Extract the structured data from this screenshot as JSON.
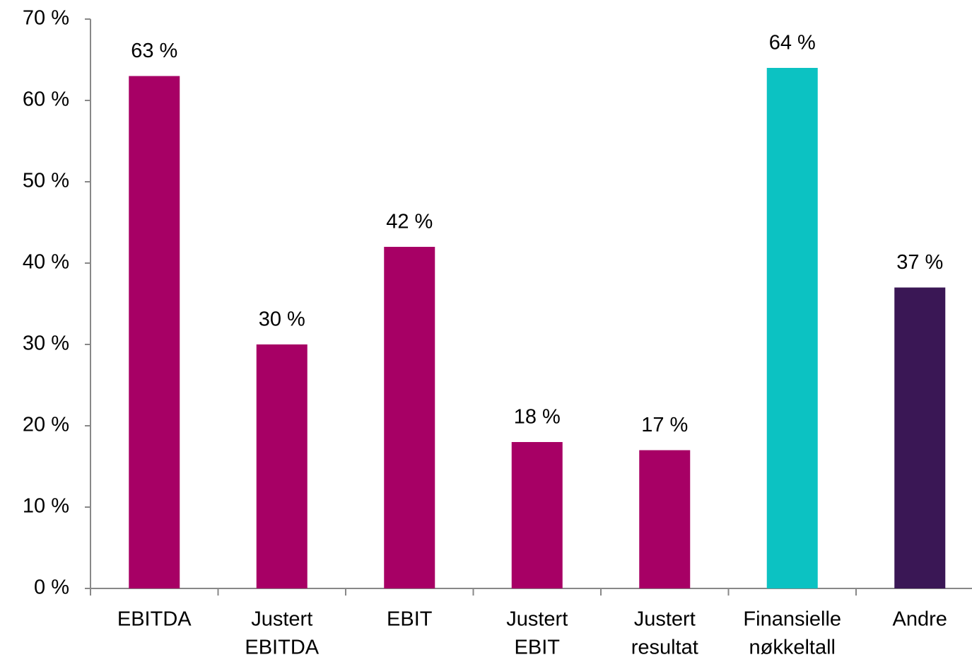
{
  "chart_data": {
    "type": "bar",
    "categories": [
      [
        "EBITDA"
      ],
      [
        "Justert",
        "EBITDA"
      ],
      [
        "EBIT"
      ],
      [
        "Justert",
        "EBIT"
      ],
      [
        "Justert",
        "resultat"
      ],
      [
        "Finansielle",
        "nøkkeltall"
      ],
      [
        "Andre"
      ]
    ],
    "values": [
      63,
      30,
      42,
      18,
      17,
      64,
      37
    ],
    "value_labels": [
      "63 %",
      "30 %",
      "42 %",
      "18 %",
      "17 %",
      "64 %",
      "37 %"
    ],
    "colors": [
      "#a70065",
      "#a70065",
      "#a70065",
      "#a70065",
      "#a70065",
      "#0cc2c2",
      "#3a1755"
    ],
    "ylim": [
      0,
      70
    ],
    "yticks": [
      {
        "value": 0,
        "label": "0 %"
      },
      {
        "value": 10,
        "label": "10 %"
      },
      {
        "value": 20,
        "label": "20 %"
      },
      {
        "value": 30,
        "label": "30 %"
      },
      {
        "value": 40,
        "label": "40 %"
      },
      {
        "value": 50,
        "label": "50 %"
      },
      {
        "value": 60,
        "label": "60 %"
      },
      {
        "value": 70,
        "label": "70 %"
      }
    ],
    "grid": false
  }
}
